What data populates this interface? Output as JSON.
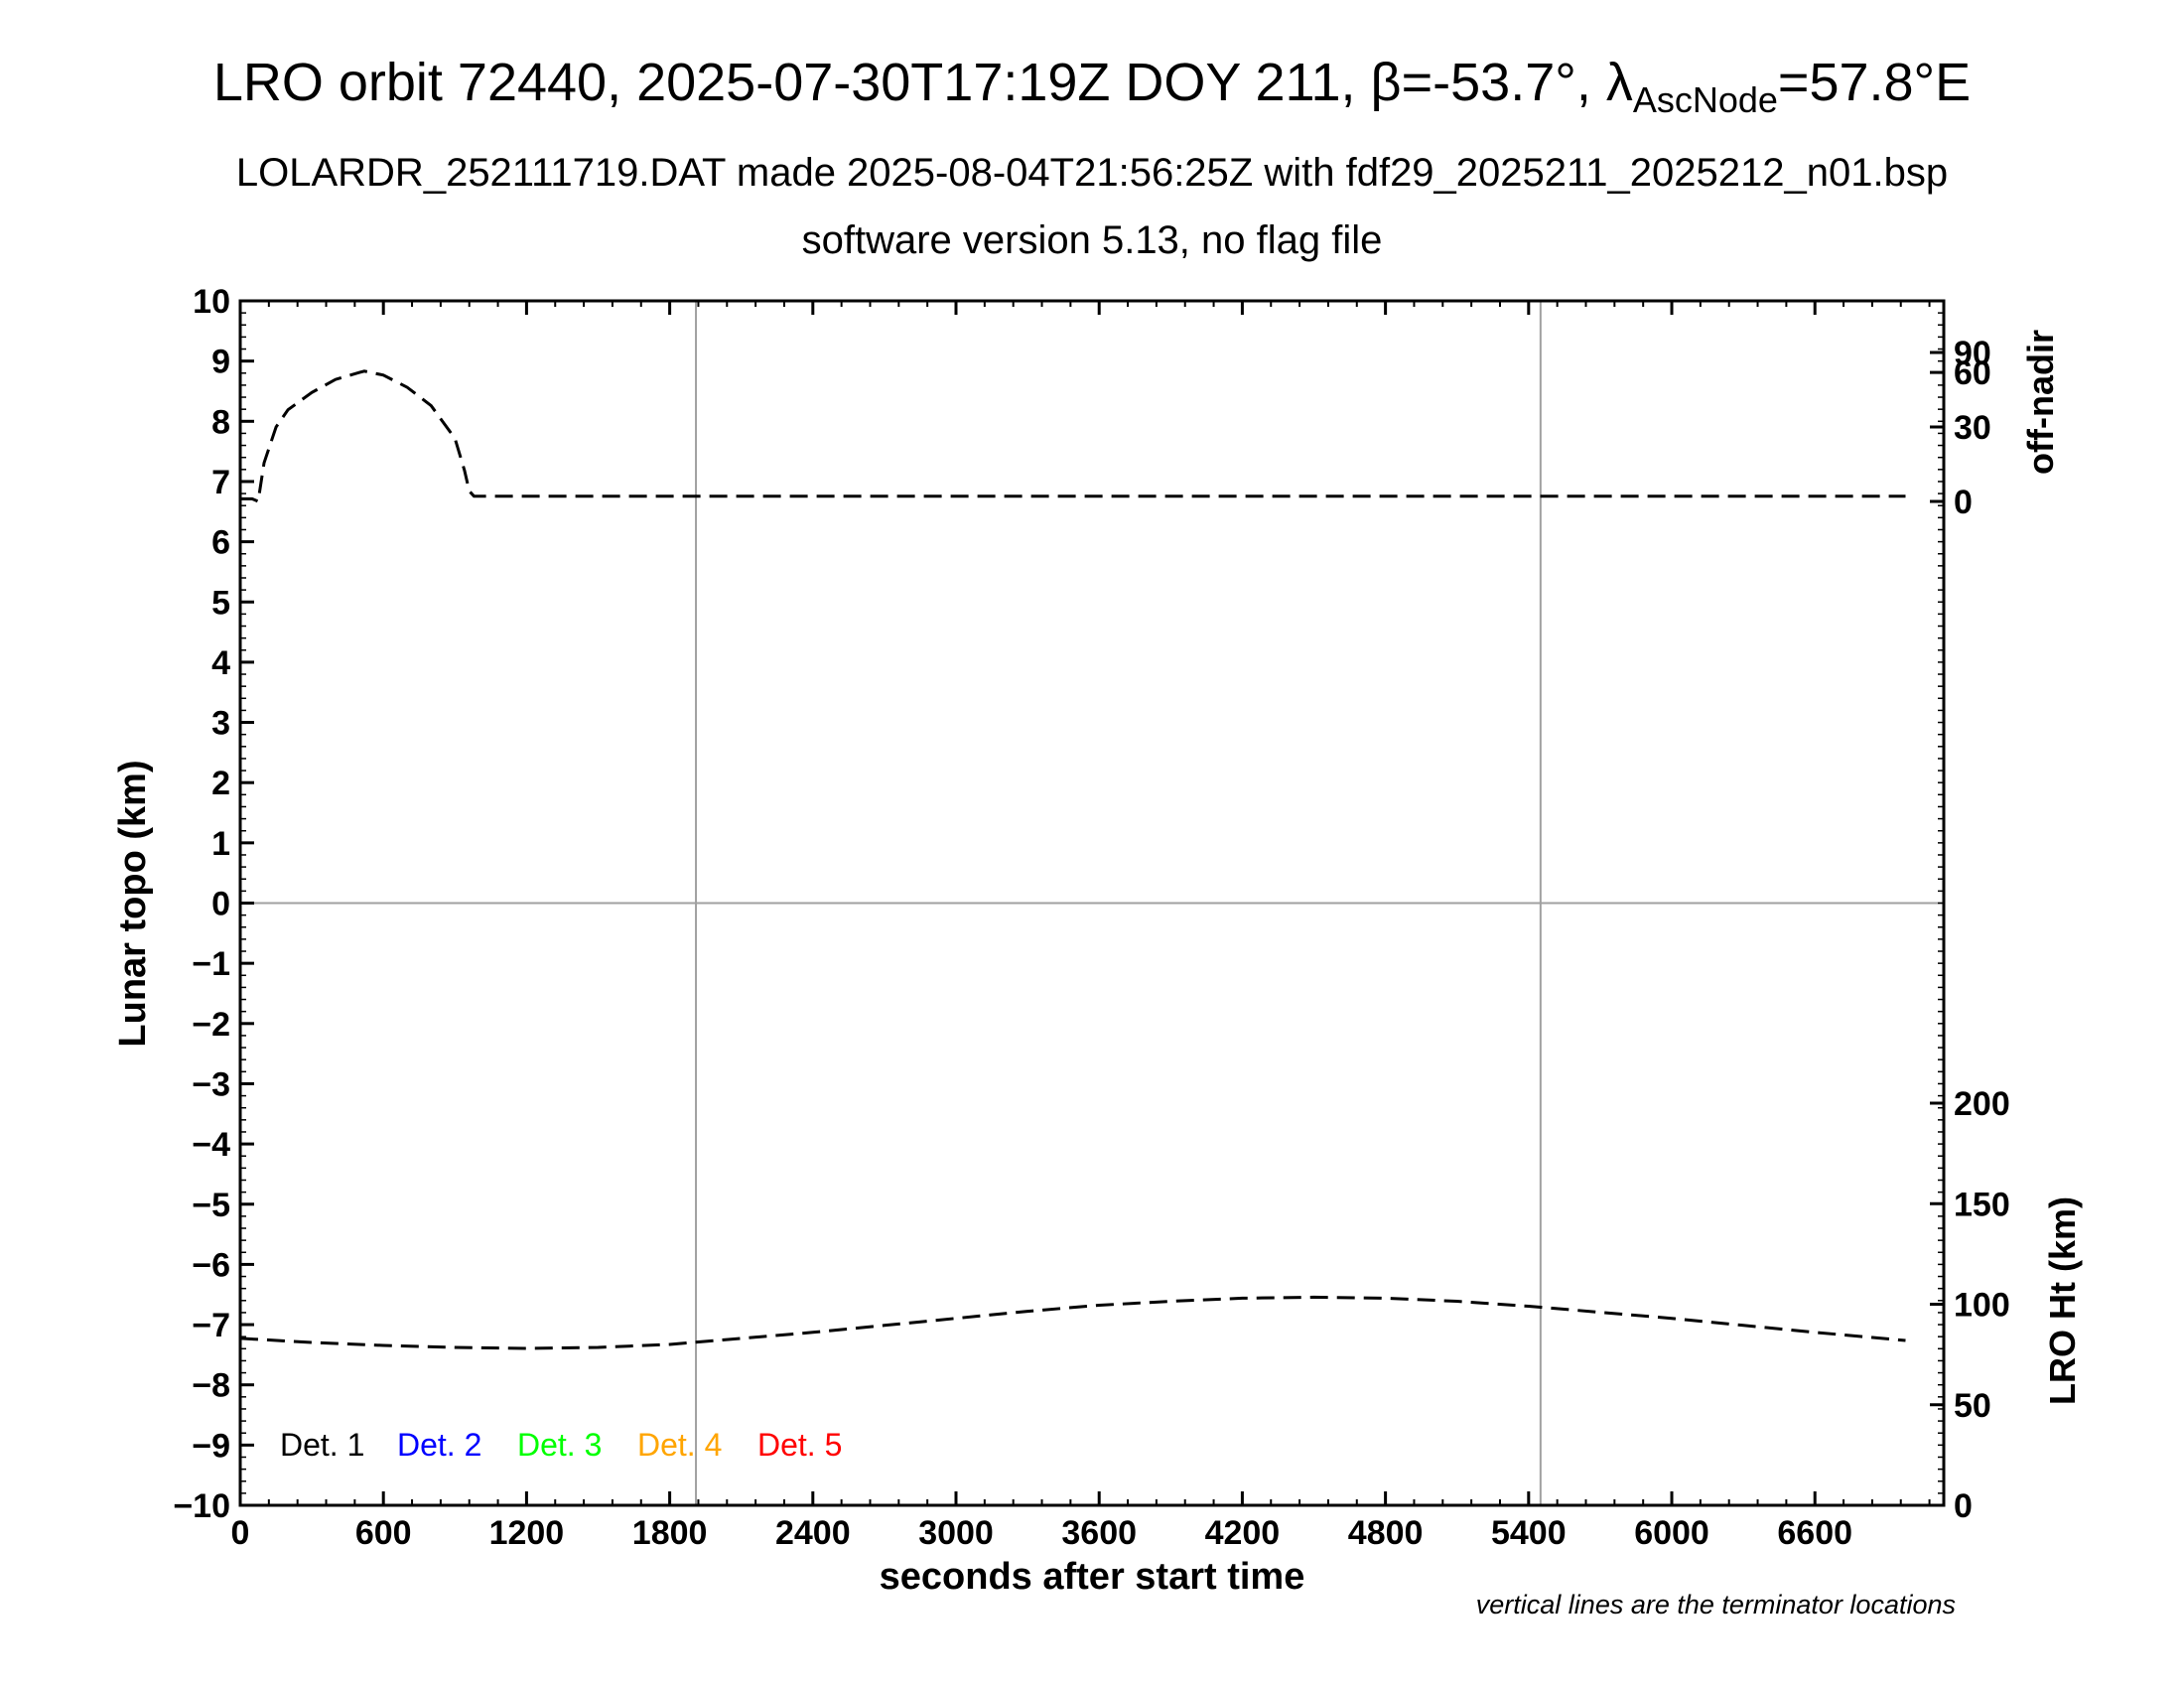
{
  "title": {
    "main": "LRO orbit 72440, 2025-07-30T17:19Z DOY 211, β=-53.7°, λ",
    "sub": "AscNode",
    "tail": "=57.8°E"
  },
  "subtitle1": "LOLARDR_252111719.DAT made 2025-08-04T21:56:25Z with fdf29_2025211_2025212_n01.bsp",
  "subtitle2": "software version 5.13, no flag file",
  "note": "vertical lines are the terminator locations",
  "colors": {
    "det1": "#000000",
    "det2": "#0000ff",
    "det3": "#00ff00",
    "det4": "#ffa500",
    "det5": "#ff0000",
    "grid": "#a0a0a0",
    "series": "#000000"
  },
  "chart_data": {
    "type": "line",
    "xlabel": "seconds after start time",
    "ylabel": "Lunar topo (km)",
    "y2label_top": "off-nadir",
    "y2label_bottom": "LRO Ht (km)",
    "xlim": [
      0,
      7140
    ],
    "ylim": [
      -10,
      10
    ],
    "x_ticks": [
      "0",
      "600",
      "1200",
      "1800",
      "2400",
      "3000",
      "3600",
      "4200",
      "4800",
      "5400",
      "6000",
      "6600"
    ],
    "y_ticks": [
      "10",
      "9",
      "8",
      "7",
      "6",
      "5",
      "4",
      "3",
      "2",
      "1",
      "0",
      "−1",
      "−2",
      "−3",
      "−4",
      "−5",
      "−6",
      "−7",
      "−8",
      "−9",
      "−10"
    ],
    "offnadir_ticks": [
      "90",
      "60",
      "30",
      "0"
    ],
    "ht_ticks": [
      "200",
      "150",
      "100",
      "50",
      "0"
    ],
    "terminators": [
      1910,
      5450
    ],
    "legend": [
      "Det. 1",
      "Det. 2",
      "Det. 3",
      "Det. 4",
      "Det. 5"
    ],
    "series": [
      {
        "name": "off-nadir",
        "axis": "off-nadir (deg)",
        "x": [
          0,
          50,
          75,
          100,
          150,
          200,
          300,
          400,
          500,
          520,
          600,
          700,
          800,
          900,
          940,
          960,
          980,
          1200,
          1800,
          2400,
          3000,
          3600,
          4200,
          4800,
          5400,
          6000,
          6600,
          6980
        ],
        "values": [
          1,
          1,
          0,
          15,
          30,
          38,
          47,
          55,
          60,
          61,
          58,
          50,
          40,
          25,
          12,
          4,
          2,
          2,
          2,
          2,
          2,
          2,
          2,
          2,
          2,
          2,
          2,
          2
        ]
      },
      {
        "name": "LRO Ht",
        "axis": "LRO Ht (km)",
        "x": [
          0,
          300,
          600,
          900,
          1200,
          1500,
          1800,
          2100,
          2400,
          2700,
          3000,
          3300,
          3600,
          3900,
          4200,
          4500,
          4800,
          5100,
          5400,
          5700,
          6000,
          6300,
          6600,
          6980
        ],
        "values": [
          83,
          81,
          79.5,
          78.5,
          78,
          78.5,
          80,
          83,
          86,
          89.5,
          93,
          96.5,
          99.5,
          101.5,
          103,
          103.5,
          103,
          101.5,
          99,
          96,
          93,
          89.5,
          86,
          82
        ]
      }
    ]
  }
}
